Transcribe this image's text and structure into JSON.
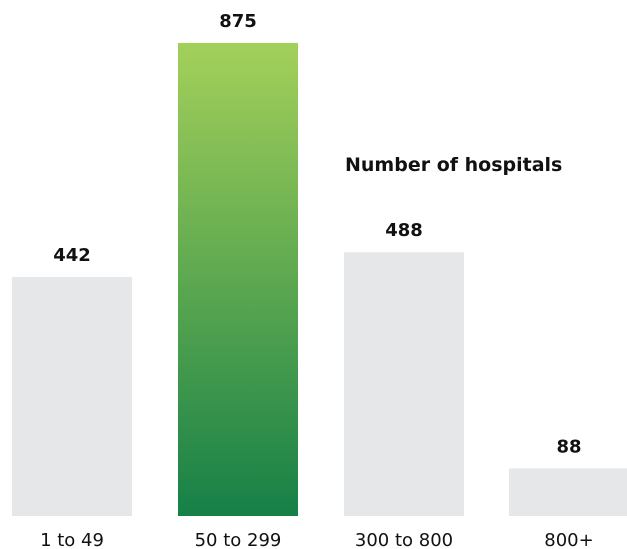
{
  "chart_data": {
    "type": "bar",
    "title": "Number of hospitals",
    "xlabel": "",
    "ylabel": "",
    "categories": [
      "1 to 49",
      "50 to 299",
      "300 to 800",
      "800+"
    ],
    "values": [
      442,
      875,
      488,
      88
    ],
    "ylim": [
      0,
      875
    ],
    "grid": false,
    "legend": "none",
    "highlight_index": 1,
    "colors": {
      "default_bar": "#e6e7e8",
      "highlight_top": "#a4d05a",
      "highlight_bottom": "#168047",
      "text": "#111111"
    }
  }
}
